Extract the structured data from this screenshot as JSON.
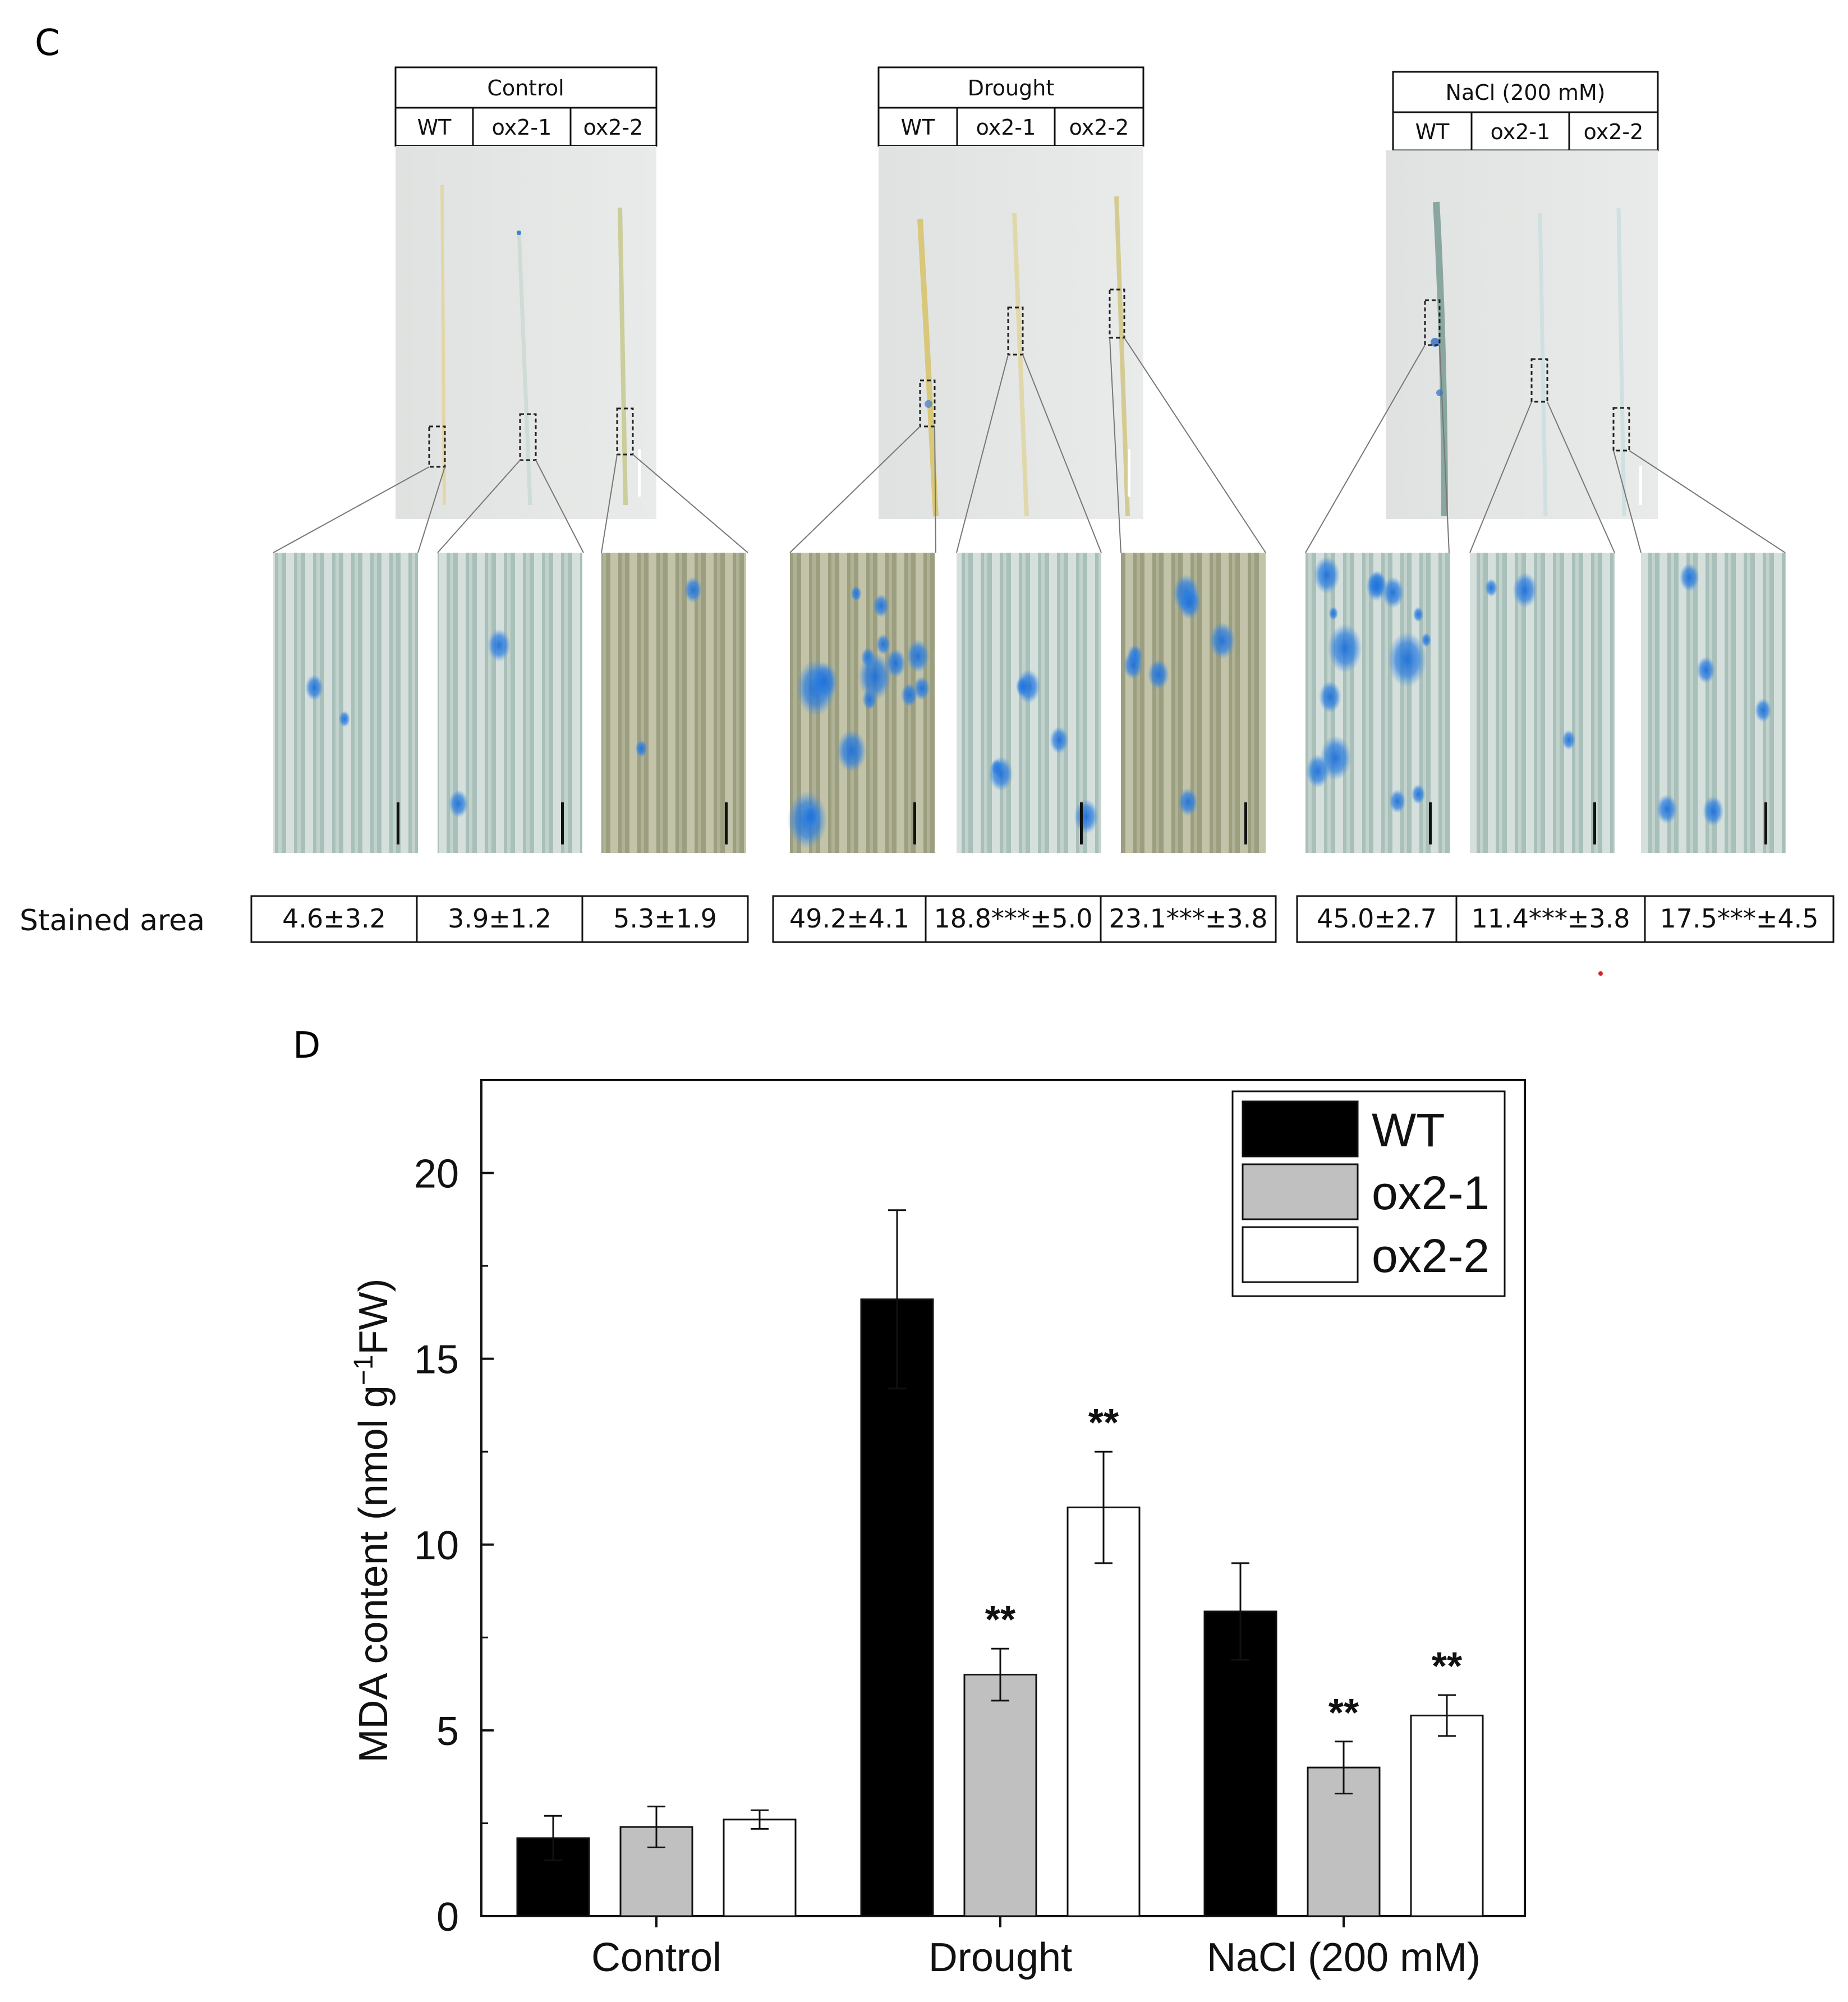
{
  "panel_c": {
    "label": "C",
    "groups": [
      {
        "title": "Control",
        "columns": [
          "WT",
          "ox2-1",
          "ox2-2"
        ],
        "stained_area": [
          "4.6±3.2",
          "3.9±1.2",
          "5.3±1.9"
        ],
        "stain_level": [
          0.05,
          0.06,
          0.05
        ]
      },
      {
        "title": "Drought",
        "columns": [
          "WT",
          "ox2-1",
          "ox2-2"
        ],
        "stained_area": [
          "49.2±4.1",
          "18.8***±5.0",
          "23.1***±3.8"
        ],
        "stain_level": [
          0.49,
          0.19,
          0.23
        ]
      },
      {
        "title": "NaCl (200 mM)",
        "columns": [
          "WT",
          "ox2-1",
          "ox2-2"
        ],
        "stained_area": [
          "45.0±2.7",
          "11.4***±3.8",
          "17.5***±4.5"
        ],
        "stain_level": [
          0.45,
          0.11,
          0.18
        ]
      }
    ],
    "row_label": "Stained area"
  },
  "panel_d": {
    "label": "D"
  },
  "chart_data": {
    "type": "bar",
    "categories": [
      "Control",
      "Drought",
      "NaCl (200 mM)"
    ],
    "series": [
      {
        "name": "WT",
        "values": [
          2.1,
          16.6,
          8.2
        ],
        "errors": [
          0.6,
          2.4,
          1.3
        ],
        "color": "#000000",
        "significance": [
          "",
          "",
          ""
        ]
      },
      {
        "name": "ox2-1",
        "values": [
          2.4,
          6.5,
          4.0
        ],
        "errors": [
          0.55,
          0.7,
          0.7
        ],
        "color": "#c0c0c0",
        "significance": [
          "",
          "**",
          "**"
        ]
      },
      {
        "name": "ox2-2",
        "values": [
          2.6,
          11.0,
          5.4
        ],
        "errors": [
          0.25,
          1.5,
          0.55
        ],
        "color": "#ffffff",
        "significance": [
          "",
          "**",
          "**"
        ]
      }
    ],
    "ylabel_main": "MDA content (nmol g",
    "ylabel_sup": "−1",
    "ylabel_end": "FW)",
    "ylim": [
      0,
      22.5
    ],
    "yticks": [
      0,
      5,
      10,
      15,
      20
    ],
    "legend_position": "top-right",
    "grid": false
  }
}
